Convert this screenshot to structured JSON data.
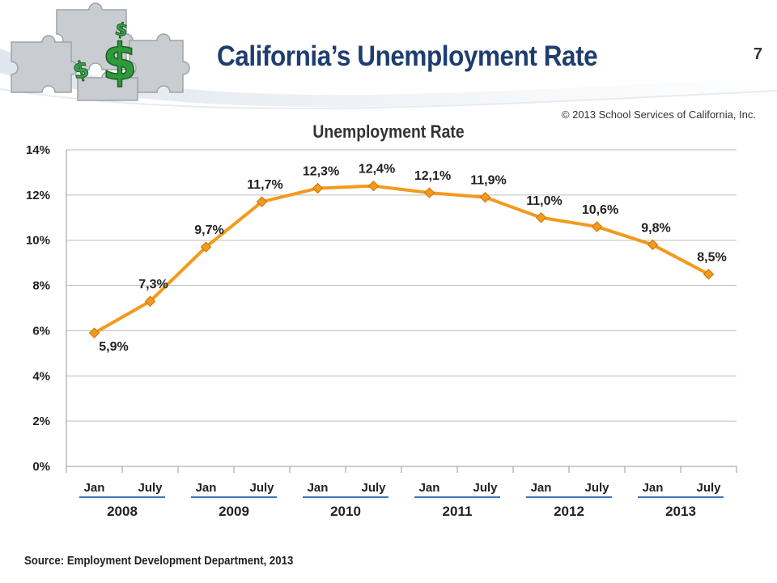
{
  "slide": {
    "title": "California’s Unemployment Rate",
    "number": "7",
    "copyright": "© 2013 School Services of California, Inc.",
    "source": "Source: Employment Development Department, 2013"
  },
  "colors": {
    "line": "#f39a1e",
    "marker": "#f39a1e",
    "title": "#1f3d6f",
    "year_underline": "#3b76b8",
    "grid": "#bdbdbd"
  },
  "chart_data": {
    "type": "line",
    "title": "Unemployment Rate",
    "xlabel": "",
    "ylabel": "",
    "categories": [
      "Jan",
      "July",
      "Jan",
      "July",
      "Jan",
      "July",
      "Jan",
      "July",
      "Jan",
      "July",
      "Jan",
      "July"
    ],
    "year_groups": [
      "2008",
      "2009",
      "2010",
      "2011",
      "2012",
      "2013"
    ],
    "series": [
      {
        "values": [
          5.9,
          7.3,
          9.7,
          11.7,
          12.3,
          12.4,
          12.1,
          11.9,
          11.0,
          10.6,
          9.8,
          8.5
        ],
        "labels": [
          "5,9%",
          "7,3%",
          "9,7%",
          "11,7%",
          "12,3%",
          "12,4%",
          "12,1%",
          "11,9%",
          "11,0%",
          "10,6%",
          "9,8%",
          "8,5%"
        ]
      }
    ],
    "ylim": [
      0,
      14
    ],
    "yticks": [
      0,
      2,
      4,
      6,
      8,
      10,
      12,
      14
    ],
    "ytick_labels": [
      "0%",
      "2%",
      "4%",
      "6%",
      "8%",
      "10%",
      "12%",
      "14%"
    ],
    "grid": true,
    "legend": "none"
  }
}
